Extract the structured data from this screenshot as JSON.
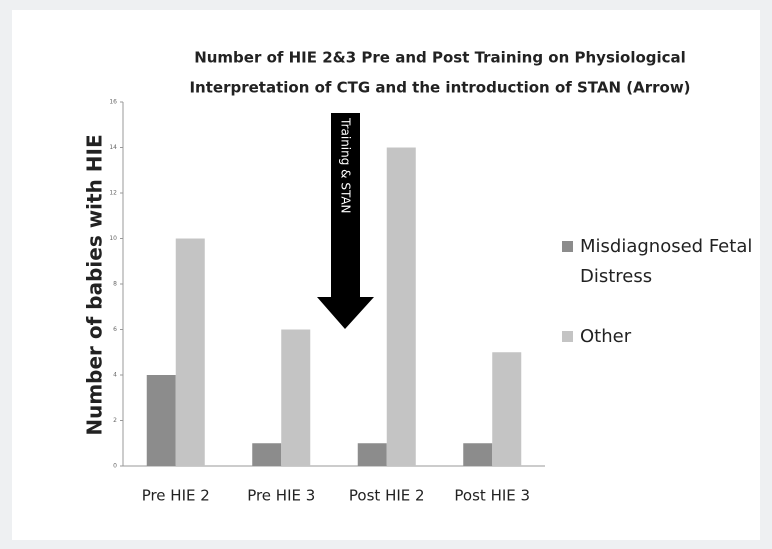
{
  "chart_data": {
    "type": "bar",
    "title": [
      "Number of HIE 2&3 Pre and Post Training on Physiological",
      "Interpretation of CTG and the introduction of STAN (Arrow)"
    ],
    "y_label": "Number of babies with HIE",
    "annotation": "Training & STAN",
    "categories": [
      "Pre HIE 2",
      "Pre HIE 3",
      "Post HIE 2",
      "Post HIE 3"
    ],
    "series": [
      {
        "name": "Misdiagnosed Fetal Distress",
        "color": "#8c8c8c",
        "values": [
          4,
          1,
          1,
          1
        ]
      },
      {
        "name": "Other",
        "color": "#c4c4c4",
        "values": [
          10,
          6,
          14,
          5
        ]
      }
    ],
    "ylim": [
      0,
      16
    ],
    "yticks": [
      0,
      2,
      4,
      6,
      8,
      10,
      12,
      14,
      16
    ],
    "legend": "right"
  }
}
